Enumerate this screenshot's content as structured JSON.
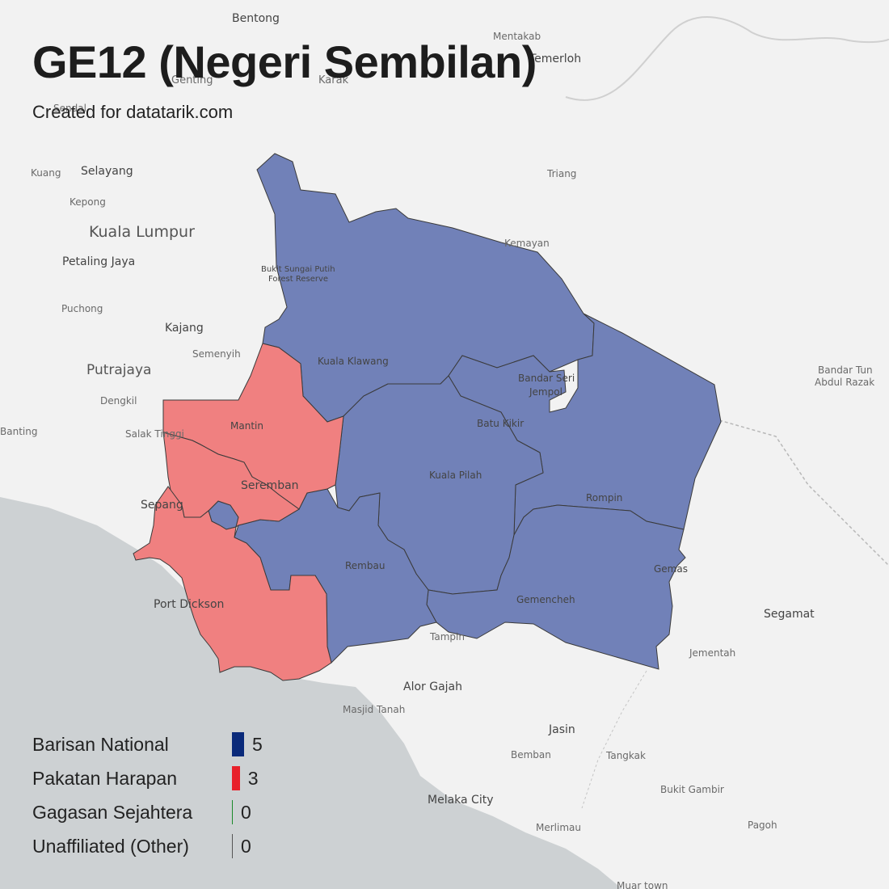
{
  "title": "GE12 (Negeri Sembilan)",
  "subtitle": "Created for datatarik.com",
  "colors": {
    "barisan_national": "#0a2a7a",
    "pakatan_harapan": "#e8202a",
    "gagasan_sejahtera": "#1a8a2a",
    "unaffiliated": "#555555",
    "bn_fill": "#7181b8",
    "ph_fill": "#f08080",
    "sea": "#cdd1d3",
    "land": "#f2f2f2"
  },
  "legend": [
    {
      "name": "Barisan National",
      "count": "5",
      "seats": 5,
      "color": "#0a2a7a"
    },
    {
      "name": "Pakatan Harapan",
      "count": "3",
      "seats": 3,
      "color": "#e8202a"
    },
    {
      "name": "Gagasan Sejahtera",
      "count": "0",
      "seats": 0,
      "color": "#1a8a2a"
    },
    {
      "name": "Unaffiliated (Other)",
      "count": "0",
      "seats": 0,
      "color": "#555555"
    }
  ],
  "places": {
    "bentong": "Bentong",
    "mentakab": "Mentakab",
    "temerloh": "Temerloh",
    "genting": "Genting",
    "karak": "Karak",
    "sendal": "Sendal",
    "kuang": "Kuang",
    "selayang": "Selayang",
    "triang": "Triang",
    "kepong": "Kepong",
    "kuala_lumpur": "Kuala Lumpur",
    "kemayan": "Kemayan",
    "petaling_jaya": "Petaling Jaya",
    "bukit_sungai_putih_1": "Bukit Sungai Putih",
    "bukit_sungai_putih_2": "Forest Reserve",
    "puchong": "Puchong",
    "kajang": "Kajang",
    "semenyih": "Semenyih",
    "kuala_klawang": "Kuala Klawang",
    "putrajaya": "Putrajaya",
    "bandar_seri_jempol_1": "Bandar Seri",
    "bandar_seri_jempol_2": "Jempol",
    "bandar_tun_abdul_razak_1": "Bandar Tun",
    "bandar_tun_abdul_razak_2": "Abdul Razak",
    "dengkil": "Dengkil",
    "banting": "Banting",
    "mantin": "Mantin",
    "batu_kikir": "Batu Kikir",
    "salak_tinggi": "Salak Tinggi",
    "kuala_pilah": "Kuala Pilah",
    "seremban": "Seremban",
    "sepang": "Sepang",
    "rompin": "Rompin",
    "rembau": "Rembau",
    "gemas": "Gemas",
    "port_dickson": "Port Dickson",
    "gemencheh": "Gemencheh",
    "segamat": "Segamat",
    "tampin": "Tampin",
    "jementah": "Jementah",
    "alor_gajah": "Alor Gajah",
    "masjid_tanah": "Masjid Tanah",
    "jasin": "Jasin",
    "bemban": "Bemban",
    "tangkak": "Tangkak",
    "bukit_gambir": "Bukit Gambir",
    "melaka_city": "Melaka City",
    "merlimau": "Merlimau",
    "pagoh": "Pagoh",
    "muar_town": "Muar town"
  }
}
